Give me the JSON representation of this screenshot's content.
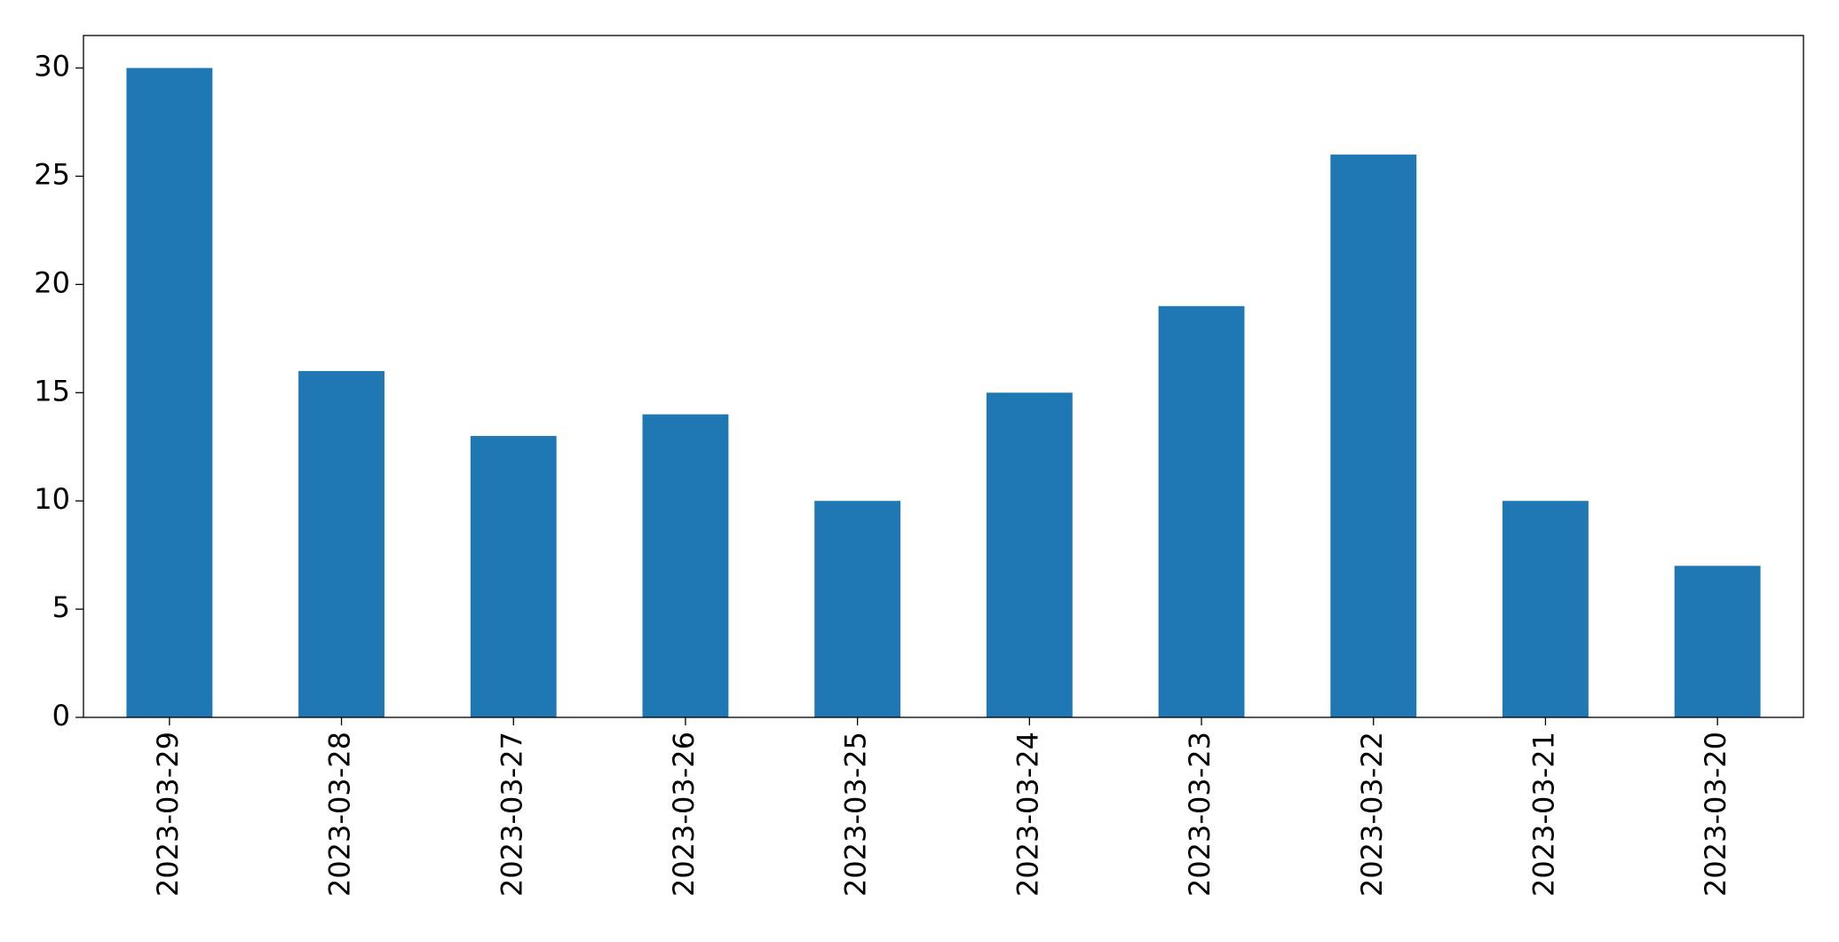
{
  "chart_data": {
    "type": "bar",
    "categories": [
      "2023-03-29",
      "2023-03-28",
      "2023-03-27",
      "2023-03-26",
      "2023-03-25",
      "2023-03-24",
      "2023-03-23",
      "2023-03-22",
      "2023-03-21",
      "2023-03-20"
    ],
    "values": [
      30,
      16,
      13,
      14,
      10,
      15,
      19,
      26,
      10,
      7
    ],
    "color": "#1f77b4",
    "ylim": [
      0,
      31.5
    ],
    "yticks": [
      0,
      5,
      10,
      15,
      20,
      25,
      30
    ],
    "grid": false
  }
}
